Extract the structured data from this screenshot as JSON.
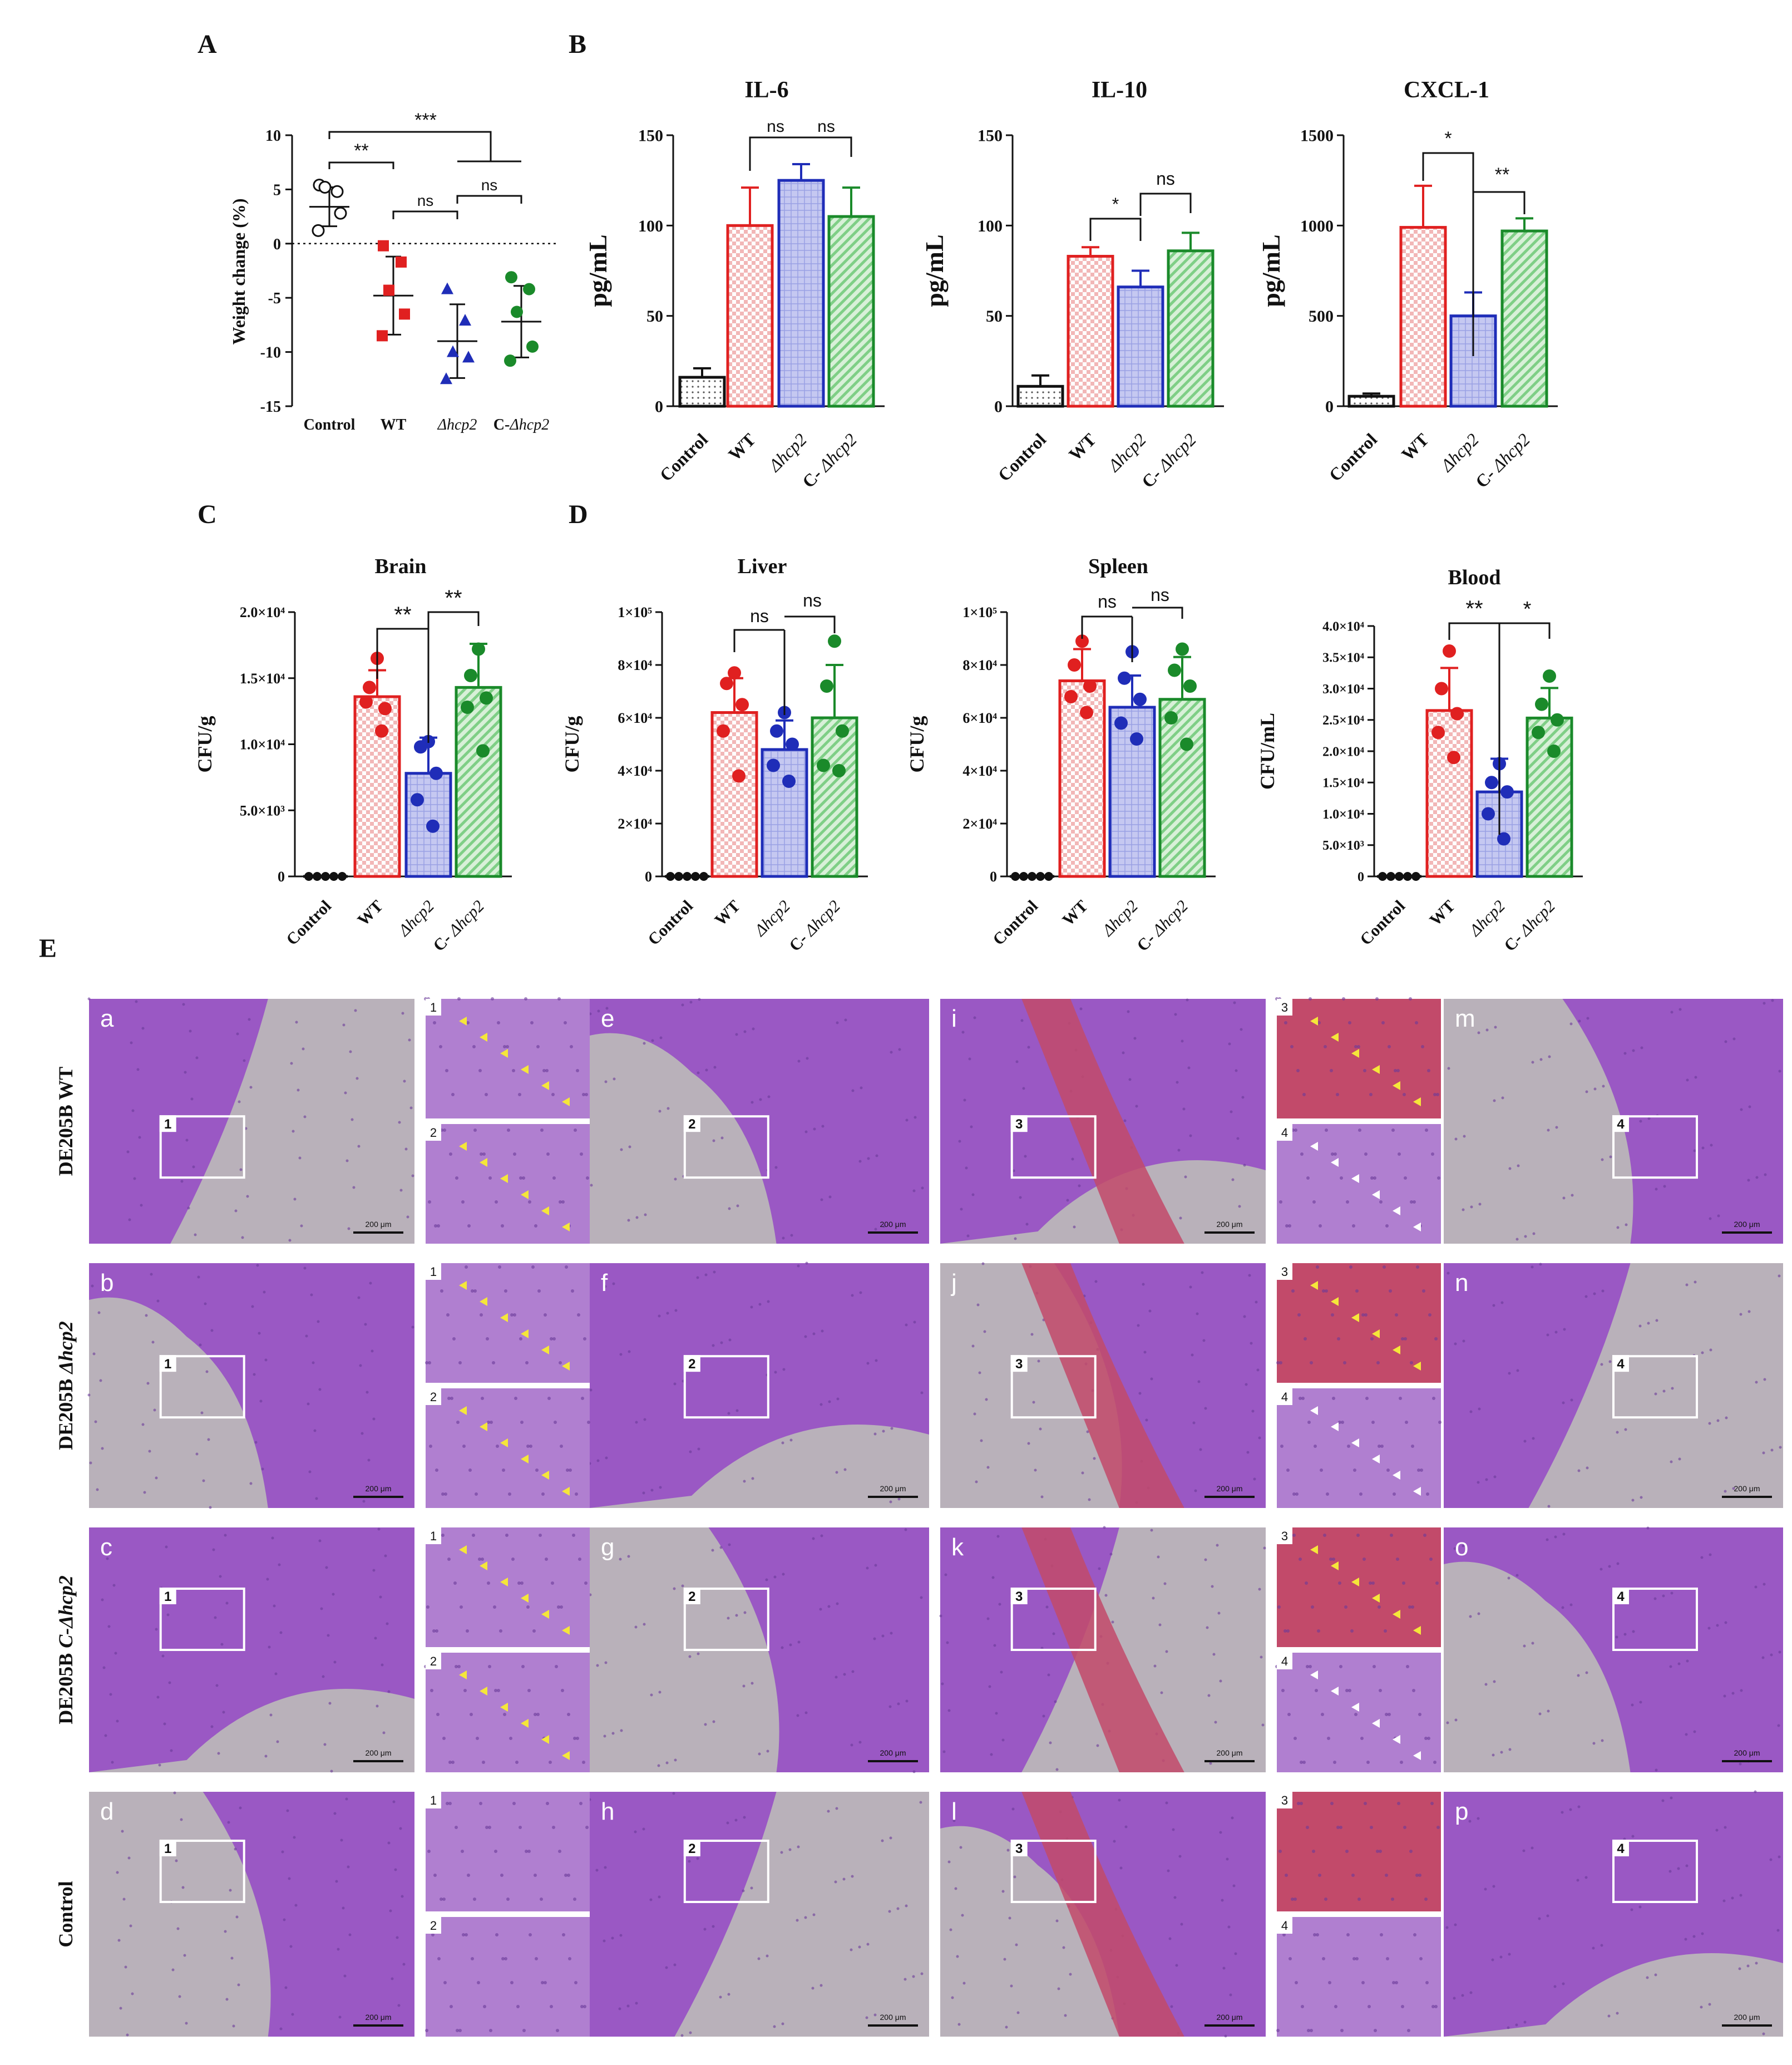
{
  "colors": {
    "control": "#111111",
    "wt": "#e02020",
    "dhcp2": "#1f2db8",
    "c_dhcp2": "#1a8a2a",
    "yellow": "#f5e63a",
    "white_arrow": "#ffffff",
    "tissue": "#9a58c4",
    "tissue_light": "#b07fd0",
    "blood": "#c24a6a",
    "bg": "#b9b1ba"
  },
  "panels": {
    "A": "A",
    "B": "B",
    "C": "C",
    "D": "D",
    "E": "E"
  },
  "chart_data": [
    {
      "id": "A",
      "type": "scatter",
      "title": "",
      "ylabel": "Weight change (%)",
      "ylim": [
        -15,
        10
      ],
      "yticks": [
        10,
        5,
        0,
        -5,
        -10,
        -15
      ],
      "categories": [
        "Control",
        "WT",
        "Δhcp2",
        "C-Δhcp2"
      ],
      "means": [
        3.4,
        -4.8,
        -9.0,
        -7.2
      ],
      "sd": [
        1.8,
        3.6,
        3.4,
        3.3
      ],
      "points": [
        [
          5.4,
          4.8,
          5.2,
          2.8,
          1.2
        ],
        [
          -0.2,
          -1.7,
          -4.3,
          -6.5,
          -8.5
        ],
        [
          -4.2,
          -7.1,
          -10.0,
          -10.5,
          -12.5
        ],
        [
          -3.1,
          -4.2,
          -6.3,
          -9.5,
          -10.8
        ]
      ],
      "sig": [
        {
          "label": "**"
        },
        {
          "label": "***"
        },
        {
          "label": "ns"
        },
        {
          "label": "ns"
        }
      ]
    },
    {
      "id": "IL6",
      "type": "bar",
      "title": "IL-6",
      "ylabel": "pg/mL",
      "ylim": [
        0,
        150
      ],
      "yticks": [
        0,
        50,
        100,
        150
      ],
      "categories": [
        "Control",
        "WT",
        "Δhcp2",
        "C- Δhcp2"
      ],
      "values": [
        16,
        100,
        125,
        105
      ],
      "err": [
        5,
        21,
        9,
        16
      ],
      "sig": [
        {
          "label": "ns"
        },
        {
          "label": "ns"
        }
      ]
    },
    {
      "id": "IL10",
      "type": "bar",
      "title": "IL-10",
      "ylabel": "pg/mL",
      "ylim": [
        0,
        150
      ],
      "yticks": [
        0,
        50,
        100,
        150
      ],
      "categories": [
        "Control",
        "WT",
        "Δhcp2",
        "C- Δhcp2"
      ],
      "values": [
        11,
        83,
        66,
        86
      ],
      "err": [
        6,
        5,
        9,
        10
      ],
      "sig": [
        {
          "label": "*"
        },
        {
          "label": "ns"
        }
      ]
    },
    {
      "id": "CXCL1",
      "type": "bar",
      "title": "CXCL-1",
      "ylabel": "pg/mL",
      "ylim": [
        0,
        1500
      ],
      "yticks": [
        0,
        500,
        1000,
        1500
      ],
      "categories": [
        "Control",
        "WT",
        "Δhcp2",
        "C- Δhcp2"
      ],
      "values": [
        55,
        990,
        500,
        970
      ],
      "err": [
        15,
        230,
        130,
        70
      ],
      "sig": [
        {
          "label": "*"
        },
        {
          "label": "**"
        }
      ]
    },
    {
      "id": "Brain",
      "type": "bar",
      "title": "Brain",
      "ylabel": "CFU/g",
      "ylim": [
        0,
        20000
      ],
      "yticks": [
        {
          "v": 0,
          "t": "0"
        },
        {
          "v": 5000,
          "t": "5.0×10³"
        },
        {
          "v": 10000,
          "t": "1.0×10⁴"
        },
        {
          "v": 15000,
          "t": "1.5×10⁴"
        },
        {
          "v": 20000,
          "t": "2.0×10⁴"
        }
      ],
      "categories": [
        "Control",
        "WT",
        "Δhcp2",
        "C- Δhcp2"
      ],
      "values": [
        0,
        13600,
        7800,
        14300
      ],
      "err": [
        0,
        2000,
        2700,
        3300
      ],
      "points": [
        [
          0,
          0,
          0,
          0,
          0
        ],
        [
          16500,
          14300,
          12700,
          13200,
          11000
        ],
        [
          10200,
          9800,
          7800,
          5800,
          3800
        ],
        [
          17200,
          15200,
          13500,
          12800,
          9500
        ]
      ],
      "sig": [
        {
          "label": "**"
        },
        {
          "label": "**"
        }
      ]
    },
    {
      "id": "Liver",
      "type": "bar",
      "title": "Liver",
      "ylabel": "CFU/g",
      "ylim": [
        0,
        100000
      ],
      "yticks": [
        {
          "v": 0,
          "t": "0"
        },
        {
          "v": 20000,
          "t": "2×10⁴"
        },
        {
          "v": 40000,
          "t": "4×10⁴"
        },
        {
          "v": 60000,
          "t": "6×10⁴"
        },
        {
          "v": 80000,
          "t": "8×10⁴"
        },
        {
          "v": 100000,
          "t": "1×10⁵"
        }
      ],
      "categories": [
        "Control",
        "WT",
        "Δhcp2",
        "C- Δhcp2"
      ],
      "values": [
        0,
        62000,
        48000,
        60000
      ],
      "err": [
        0,
        13000,
        11000,
        20000
      ],
      "points": [
        [
          0,
          0,
          0,
          0,
          0
        ],
        [
          77000,
          73000,
          65000,
          55000,
          38000
        ],
        [
          62000,
          55000,
          50000,
          42000,
          36000
        ],
        [
          89000,
          72000,
          55000,
          42000,
          40000
        ]
      ],
      "sig": [
        {
          "label": "ns"
        },
        {
          "label": "ns"
        }
      ]
    },
    {
      "id": "Spleen",
      "type": "bar",
      "title": "Spleen",
      "ylabel": "CFU/g",
      "ylim": [
        0,
        100000
      ],
      "yticks": [
        {
          "v": 0,
          "t": "0"
        },
        {
          "v": 20000,
          "t": "2×10⁴"
        },
        {
          "v": 40000,
          "t": "4×10⁴"
        },
        {
          "v": 60000,
          "t": "6×10⁴"
        },
        {
          "v": 80000,
          "t": "8×10⁴"
        },
        {
          "v": 100000,
          "t": "1×10⁵"
        }
      ],
      "categories": [
        "Control",
        "WT",
        "Δhcp2",
        "C- Δhcp2"
      ],
      "values": [
        0,
        74000,
        64000,
        67000
      ],
      "err": [
        0,
        12000,
        12000,
        16000
      ],
      "points": [
        [
          0,
          0,
          0,
          0,
          0
        ],
        [
          89000,
          80000,
          72000,
          68000,
          62000
        ],
        [
          85000,
          75000,
          67000,
          58000,
          52000
        ],
        [
          86000,
          78000,
          72000,
          60000,
          50000
        ]
      ],
      "sig": [
        {
          "label": "ns"
        },
        {
          "label": "ns"
        }
      ]
    },
    {
      "id": "Blood",
      "type": "bar",
      "title": "Blood",
      "ylabel": "CFU/mL",
      "ylim": [
        0,
        40000
      ],
      "yticks": [
        {
          "v": 0,
          "t": "0"
        },
        {
          "v": 5000,
          "t": "5.0×10³"
        },
        {
          "v": 10000,
          "t": "1.0×10⁴"
        },
        {
          "v": 15000,
          "t": "1.5×10⁴"
        },
        {
          "v": 20000,
          "t": "2.0×10⁴"
        },
        {
          "v": 25000,
          "t": "2.5×10⁴"
        },
        {
          "v": 30000,
          "t": "3.0×10⁴"
        },
        {
          "v": 35000,
          "t": "3.5×10⁴"
        },
        {
          "v": 40000,
          "t": "4.0×10⁴"
        }
      ],
      "categories": [
        "Control",
        "WT",
        "Δhcp2",
        "C- Δhcp2"
      ],
      "values": [
        0,
        26500,
        13500,
        25300
      ],
      "err": [
        0,
        6800,
        5300,
        4800
      ],
      "points": [
        [
          0,
          0,
          0,
          0,
          0
        ],
        [
          36000,
          30000,
          26000,
          23000,
          19000
        ],
        [
          18000,
          15000,
          13500,
          10000,
          6000
        ],
        [
          32000,
          27500,
          25000,
          23000,
          20000
        ]
      ],
      "sig": [
        {
          "label": "**"
        },
        {
          "label": "*"
        }
      ]
    }
  ],
  "histology": {
    "rows": [
      "DE205B WT",
      "DE205B Δhcp2",
      "DE205B C-Δhcp2",
      "Control"
    ],
    "row_prefix": [
      "DE205B ",
      "DE205B ",
      "DE205B ",
      ""
    ],
    "row_suffix": [
      "WT",
      "Δhcp2",
      "C-Δhcp2",
      ""
    ],
    "letters": [
      [
        "a",
        "e",
        "i",
        "m"
      ],
      [
        "b",
        "f",
        "j",
        "n"
      ],
      [
        "c",
        "g",
        "k",
        "o"
      ],
      [
        "d",
        "h",
        "l",
        "p"
      ]
    ],
    "inset_numbers": [
      [
        "1",
        "2"
      ],
      [
        "3",
        "4"
      ]
    ],
    "scale_bar": "200 μm"
  }
}
